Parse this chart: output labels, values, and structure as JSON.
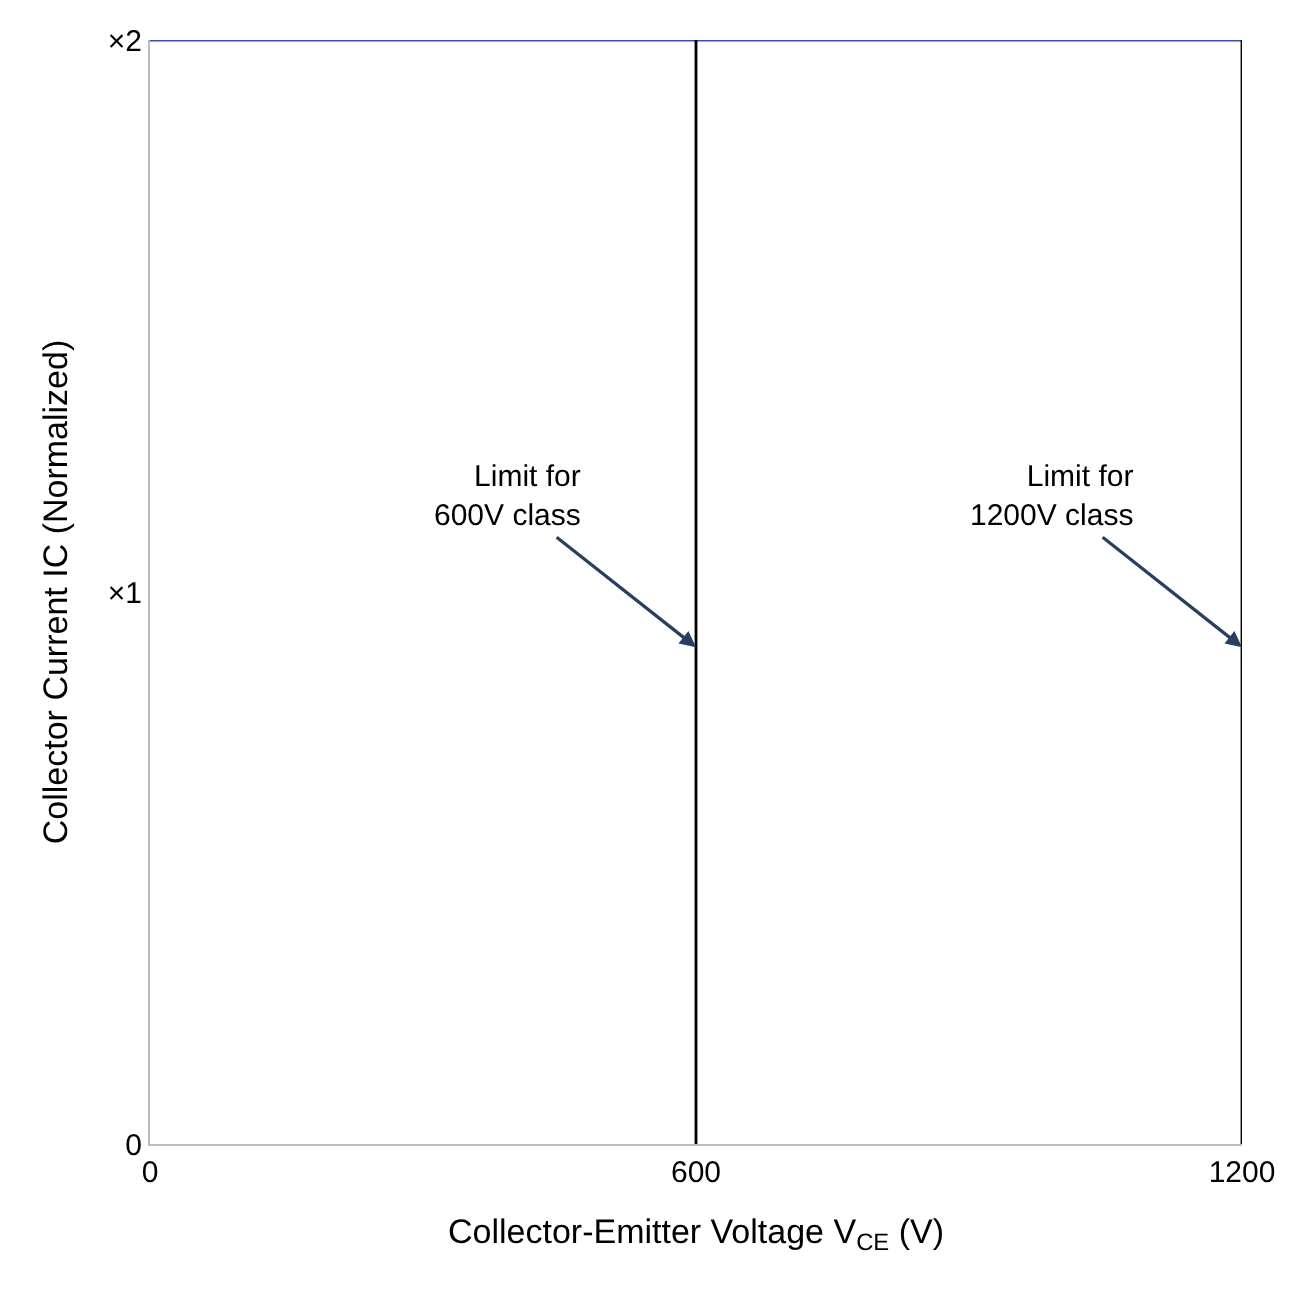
{
  "chart_data": {
    "type": "line",
    "xlabel": "Collector-Emitter Voltage V$_{CE}$ (V)",
    "ylabel": "Collector Current IC (Normalized)",
    "series": [
      {
        "x": [
          0,
          1200
        ],
        "values": [
          2,
          2
        ],
        "color": "#3f4fa8"
      },
      {
        "x": [
          600,
          600
        ],
        "values": [
          0,
          2
        ],
        "color": "#000000"
      },
      {
        "x": [
          1200,
          1200
        ],
        "values": [
          0,
          2
        ],
        "color": "#000000"
      }
    ],
    "xlim": [
      0,
      1200
    ],
    "xticks": [
      0,
      600,
      1200
    ],
    "ylim": [
      0,
      2
    ],
    "yticks": [
      0,
      {
        "value": 1,
        "label": "×1"
      },
      {
        "value": 2,
        "label": "×2"
      }
    ],
    "annotations": [
      {
        "text": "Limit for\n600V class",
        "x": 600,
        "y": 0.9
      },
      {
        "text": "Limit for\n1200V class",
        "x": 1200,
        "y": 0.9
      }
    ],
    "marker": "none",
    "line_style": "solid"
  }
}
